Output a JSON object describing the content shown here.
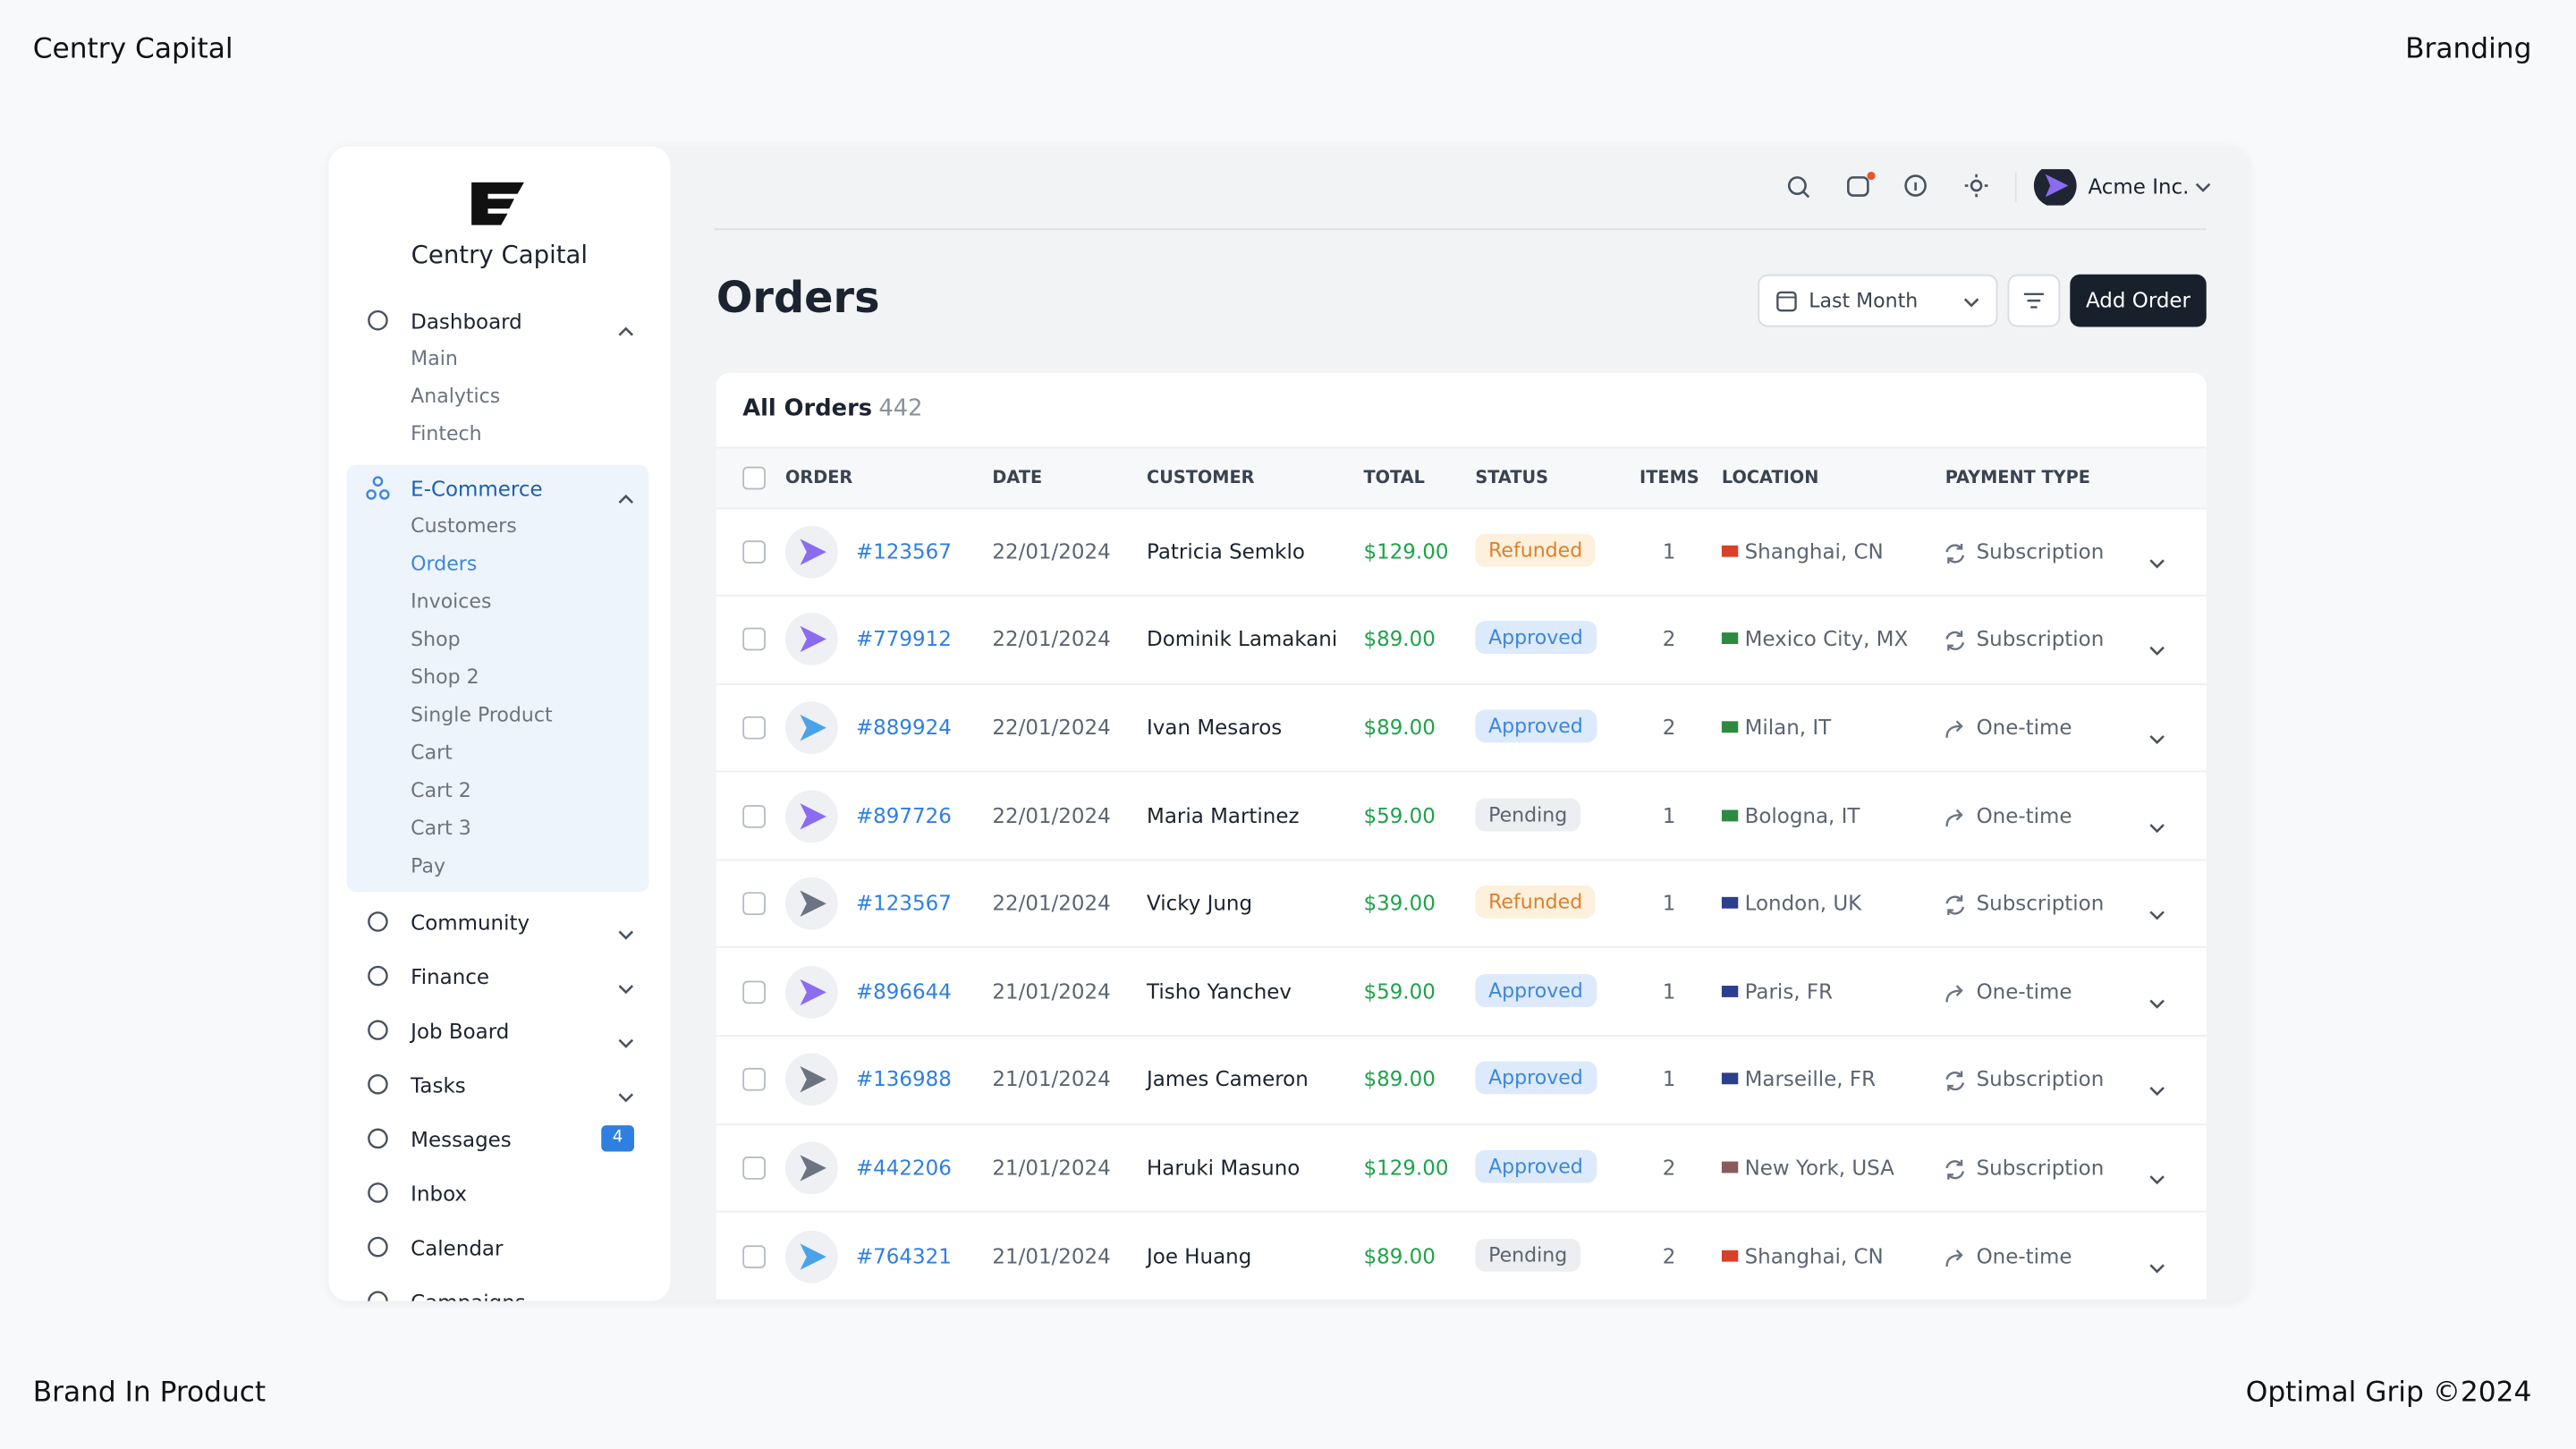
{
  "page": {
    "brand_left": "Centry Capital",
    "top_right": "Branding",
    "bottom_left": "Brand In Product",
    "bottom_right": "Optimal Grip ©2024"
  },
  "sidebar": {
    "logo_text": "Centry Capital",
    "groups": [
      {
        "label": "Dashboard",
        "items": [
          "Main",
          "Analytics",
          "Fintech"
        ]
      },
      {
        "label": "E-Commerce",
        "items": [
          "Customers",
          "Orders",
          "Invoices",
          "Shop",
          "Shop 2",
          "Single Product",
          "Cart",
          "Cart 2",
          "Cart 3",
          "Pay"
        ],
        "active_index": 1
      }
    ],
    "nav": [
      {
        "label": "Community"
      },
      {
        "label": "Finance"
      },
      {
        "label": "Job Board"
      },
      {
        "label": "Tasks"
      },
      {
        "label": "Messages",
        "badge": "4"
      },
      {
        "label": "Inbox"
      },
      {
        "label": "Calendar"
      },
      {
        "label": "Campaigns"
      }
    ]
  },
  "topbar": {
    "account": "Acme Inc."
  },
  "header": {
    "title": "Orders",
    "date_filter": "Last Month",
    "add_button": "Add Order"
  },
  "table": {
    "title": "All Orders",
    "count": "442",
    "columns": [
      "ORDER",
      "DATE",
      "CUSTOMER",
      "TOTAL",
      "STATUS",
      "ITEMS",
      "LOCATION",
      "PAYMENT TYPE"
    ],
    "status_styles": {
      "Refunded": {
        "bg": "#fdf0dc",
        "fg": "#d9822b"
      },
      "Approved": {
        "bg": "#dceafb",
        "fg": "#3d86dc"
      },
      "Pending": {
        "bg": "#eceef1",
        "fg": "#5b6470"
      }
    },
    "payment_icons": {
      "Subscription": "loop",
      "One-time": "arrow"
    },
    "rows": [
      {
        "order": "#123567",
        "date": "22/01/2024",
        "customer": "Patricia Semklo",
        "total": "$129.00",
        "status": "Refunded",
        "items": 1,
        "location": "Shanghai, CN",
        "payment": "Subscription",
        "icon_color": "#8b6cf0",
        "flag": "#d8402a"
      },
      {
        "order": "#779912",
        "date": "22/01/2024",
        "customer": "Dominik Lamakani",
        "total": "$89.00",
        "status": "Approved",
        "items": 2,
        "location": "Mexico City, MX",
        "payment": "Subscription",
        "icon_color": "#8b6cf0",
        "flag": "#2d8a3e"
      },
      {
        "order": "#889924",
        "date": "22/01/2024",
        "customer": "Ivan Mesaros",
        "total": "$89.00",
        "status": "Approved",
        "items": 2,
        "location": "Milan, IT",
        "payment": "One-time",
        "icon_color": "#4aa3e8",
        "flag": "#2d8a3e"
      },
      {
        "order": "#897726",
        "date": "22/01/2024",
        "customer": "Maria Martinez",
        "total": "$59.00",
        "status": "Pending",
        "items": 1,
        "location": "Bologna, IT",
        "payment": "One-time",
        "icon_color": "#8b6cf0",
        "flag": "#2d8a3e"
      },
      {
        "order": "#123567",
        "date": "22/01/2024",
        "customer": "Vicky Jung",
        "total": "$39.00",
        "status": "Refunded",
        "items": 1,
        "location": "London, UK",
        "payment": "Subscription",
        "icon_color": "#6b7480",
        "flag": "#2b3f8c"
      },
      {
        "order": "#896644",
        "date": "21/01/2024",
        "customer": "Tisho Yanchev",
        "total": "$59.00",
        "status": "Approved",
        "items": 1,
        "location": "Paris, FR",
        "payment": "One-time",
        "icon_color": "#8b6cf0",
        "flag": "#2b3f8c"
      },
      {
        "order": "#136988",
        "date": "21/01/2024",
        "customer": "James Cameron",
        "total": "$89.00",
        "status": "Approved",
        "items": 1,
        "location": "Marseille, FR",
        "payment": "Subscription",
        "icon_color": "#6b7480",
        "flag": "#2b3f8c"
      },
      {
        "order": "#442206",
        "date": "21/01/2024",
        "customer": "Haruki Masuno",
        "total": "$129.00",
        "status": "Approved",
        "items": 2,
        "location": "New York, USA",
        "payment": "Subscription",
        "icon_color": "#6b7480",
        "flag": "#8a5a5a"
      },
      {
        "order": "#764321",
        "date": "21/01/2024",
        "customer": "Joe Huang",
        "total": "$89.00",
        "status": "Pending",
        "items": 2,
        "location": "Shanghai, CN",
        "payment": "One-time",
        "icon_color": "#4aa3e8",
        "flag": "#d8402a"
      }
    ]
  }
}
